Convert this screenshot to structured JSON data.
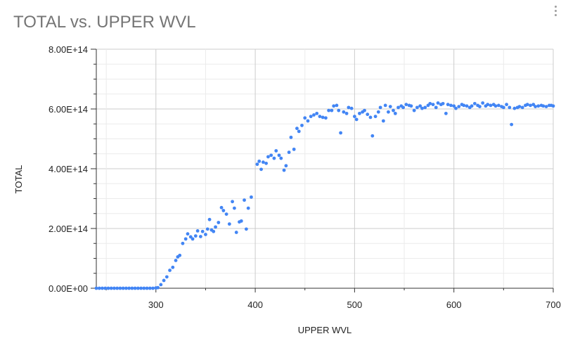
{
  "chart_data": {
    "type": "scatter",
    "title": "TOTAL vs. UPPER WVL",
    "xlabel": "UPPER WVL",
    "ylabel": "TOTAL",
    "xlim": [
      240,
      700
    ],
    "ylim": [
      0,
      800000000000000.0
    ],
    "x_ticks": [
      300,
      400,
      500,
      600,
      700
    ],
    "x_tick_labels": [
      "300",
      "400",
      "500",
      "600",
      "700"
    ],
    "y_ticks": [
      0,
      200000000000000.0,
      400000000000000.0,
      600000000000000.0,
      800000000000000.0
    ],
    "y_tick_labels": [
      "0.00E+00",
      "2.00E+14",
      "4.00E+14",
      "6.00E+14",
      "8.00E+14"
    ],
    "grid": true,
    "legend": "none",
    "color": "#4285f4",
    "points": [
      [
        240,
        0
      ],
      [
        243,
        0
      ],
      [
        246,
        0
      ],
      [
        249,
        0
      ],
      [
        252,
        0
      ],
      [
        255,
        0
      ],
      [
        258,
        0
      ],
      [
        261,
        0
      ],
      [
        264,
        0
      ],
      [
        267,
        0
      ],
      [
        270,
        0
      ],
      [
        273,
        0
      ],
      [
        276,
        0
      ],
      [
        279,
        0
      ],
      [
        282,
        0
      ],
      [
        285,
        0
      ],
      [
        288,
        0
      ],
      [
        291,
        0
      ],
      [
        294,
        0
      ],
      [
        297,
        0
      ],
      [
        300,
        1000000000000.0
      ],
      [
        302,
        2000000000000.0
      ],
      [
        305,
        12000000000000.0
      ],
      [
        308,
        26000000000000.0
      ],
      [
        311,
        38000000000000.0
      ],
      [
        314,
        60000000000000.0
      ],
      [
        317,
        70000000000000.0
      ],
      [
        320,
        93000000000000.0
      ],
      [
        322,
        105000000000000.0
      ],
      [
        324,
        110000000000000.0
      ],
      [
        327,
        150000000000000.0
      ],
      [
        330,
        165000000000000.0
      ],
      [
        332,
        182000000000000.0
      ],
      [
        335,
        172000000000000.0
      ],
      [
        337,
        165000000000000.0
      ],
      [
        340,
        175000000000000.0
      ],
      [
        342,
        192000000000000.0
      ],
      [
        345,
        173000000000000.0
      ],
      [
        347,
        190000000000000.0
      ],
      [
        350,
        180000000000000.0
      ],
      [
        352,
        198000000000000.0
      ],
      [
        354,
        230000000000000.0
      ],
      [
        356,
        195000000000000.0
      ],
      [
        358,
        190000000000000.0
      ],
      [
        360,
        205000000000000.0
      ],
      [
        363,
        220000000000000.0
      ],
      [
        366,
        270000000000000.0
      ],
      [
        368,
        260000000000000.0
      ],
      [
        371,
        248000000000000.0
      ],
      [
        374,
        215000000000000.0
      ],
      [
        377,
        290000000000000.0
      ],
      [
        379,
        268000000000000.0
      ],
      [
        381,
        187000000000000.0
      ],
      [
        384,
        222000000000000.0
      ],
      [
        386,
        225000000000000.0
      ],
      [
        389,
        295000000000000.0
      ],
      [
        391,
        198000000000000.0
      ],
      [
        393,
        268000000000000.0
      ],
      [
        396,
        305000000000000.0
      ],
      [
        402,
        415000000000000.0
      ],
      [
        404,
        425000000000000.0
      ],
      [
        406,
        398000000000000.0
      ],
      [
        408,
        422000000000000.0
      ],
      [
        411,
        418000000000000.0
      ],
      [
        413,
        440000000000000.0
      ],
      [
        416,
        445000000000000.0
      ],
      [
        419,
        435000000000000.0
      ],
      [
        421,
        460000000000000.0
      ],
      [
        424,
        445000000000000.0
      ],
      [
        426,
        435000000000000.0
      ],
      [
        429,
        395000000000000.0
      ],
      [
        431,
        410000000000000.0
      ],
      [
        434,
        455000000000000.0
      ],
      [
        436,
        505000000000000.0
      ],
      [
        439,
        465000000000000.0
      ],
      [
        442,
        535000000000000.0
      ],
      [
        444,
        525000000000000.0
      ],
      [
        447,
        545000000000000.0
      ],
      [
        450,
        570000000000000.0
      ],
      [
        453,
        560000000000000.0
      ],
      [
        456,
        575000000000000.0
      ],
      [
        459,
        580000000000000.0
      ],
      [
        462,
        585000000000000.0
      ],
      [
        465,
        575000000000000.0
      ],
      [
        468,
        572000000000000.0
      ],
      [
        471,
        570000000000000.0
      ],
      [
        474,
        595000000000000.0
      ],
      [
        477,
        595000000000000.0
      ],
      [
        479,
        610000000000000.0
      ],
      [
        482,
        612000000000000.0
      ],
      [
        484,
        595000000000000.0
      ],
      [
        486,
        520000000000000.0
      ],
      [
        489,
        590000000000000.0
      ],
      [
        492,
        585000000000000.0
      ],
      [
        494,
        605000000000000.0
      ],
      [
        497,
        602000000000000.0
      ],
      [
        500,
        575000000000000.0
      ],
      [
        502,
        565000000000000.0
      ],
      [
        505,
        585000000000000.0
      ],
      [
        508,
        590000000000000.0
      ],
      [
        510,
        595000000000000.0
      ],
      [
        513,
        582000000000000.0
      ],
      [
        516,
        572000000000000.0
      ],
      [
        518,
        510000000000000.0
      ],
      [
        521,
        575000000000000.0
      ],
      [
        524,
        590000000000000.0
      ],
      [
        526,
        605000000000000.0
      ],
      [
        529,
        560000000000000.0
      ],
      [
        531,
        612000000000000.0
      ],
      [
        534,
        590000000000000.0
      ],
      [
        536,
        608000000000000.0
      ],
      [
        539,
        595000000000000.0
      ],
      [
        541,
        585000000000000.0
      ],
      [
        544,
        605000000000000.0
      ],
      [
        547,
        610000000000000.0
      ],
      [
        549,
        605000000000000.0
      ],
      [
        552,
        615000000000000.0
      ],
      [
        555,
        612000000000000.0
      ],
      [
        557,
        610000000000000.0
      ],
      [
        560,
        595000000000000.0
      ],
      [
        563,
        605000000000000.0
      ],
      [
        566,
        610000000000000.0
      ],
      [
        568,
        602000000000000.0
      ],
      [
        571,
        605000000000000.0
      ],
      [
        574,
        612000000000000.0
      ],
      [
        576,
        618000000000000.0
      ],
      [
        579,
        615000000000000.0
      ],
      [
        582,
        605000000000000.0
      ],
      [
        584,
        620000000000000.0
      ],
      [
        587,
        615000000000000.0
      ],
      [
        589,
        618000000000000.0
      ],
      [
        592,
        585000000000000.0
      ],
      [
        594,
        615000000000000.0
      ],
      [
        597,
        612000000000000.0
      ],
      [
        600,
        610000000000000.0
      ],
      [
        602,
        602000000000000.0
      ],
      [
        605,
        608000000000000.0
      ],
      [
        608,
        615000000000000.0
      ],
      [
        610,
        612000000000000.0
      ],
      [
        613,
        610000000000000.0
      ],
      [
        616,
        605000000000000.0
      ],
      [
        618,
        610000000000000.0
      ],
      [
        621,
        618000000000000.0
      ],
      [
        624,
        612000000000000.0
      ],
      [
        626,
        608000000000000.0
      ],
      [
        629,
        620000000000000.0
      ],
      [
        632,
        610000000000000.0
      ],
      [
        634,
        615000000000000.0
      ],
      [
        637,
        612000000000000.0
      ],
      [
        640,
        615000000000000.0
      ],
      [
        642,
        610000000000000.0
      ],
      [
        645,
        612000000000000.0
      ],
      [
        648,
        608000000000000.0
      ],
      [
        650,
        605000000000000.0
      ],
      [
        653,
        615000000000000.0
      ],
      [
        656,
        605000000000000.0
      ],
      [
        658,
        548000000000000.0
      ],
      [
        661,
        602000000000000.0
      ],
      [
        664,
        605000000000000.0
      ],
      [
        666,
        608000000000000.0
      ],
      [
        669,
        605000000000000.0
      ],
      [
        672,
        612000000000000.0
      ],
      [
        674,
        615000000000000.0
      ],
      [
        677,
        612000000000000.0
      ],
      [
        680,
        615000000000000.0
      ],
      [
        682,
        608000000000000.0
      ],
      [
        685,
        610000000000000.0
      ],
      [
        688,
        612000000000000.0
      ],
      [
        690,
        610000000000000.0
      ],
      [
        693,
        608000000000000.0
      ],
      [
        696,
        612000000000000.0
      ],
      [
        698,
        612000000000000.0
      ],
      [
        700,
        610000000000000.0
      ]
    ]
  }
}
